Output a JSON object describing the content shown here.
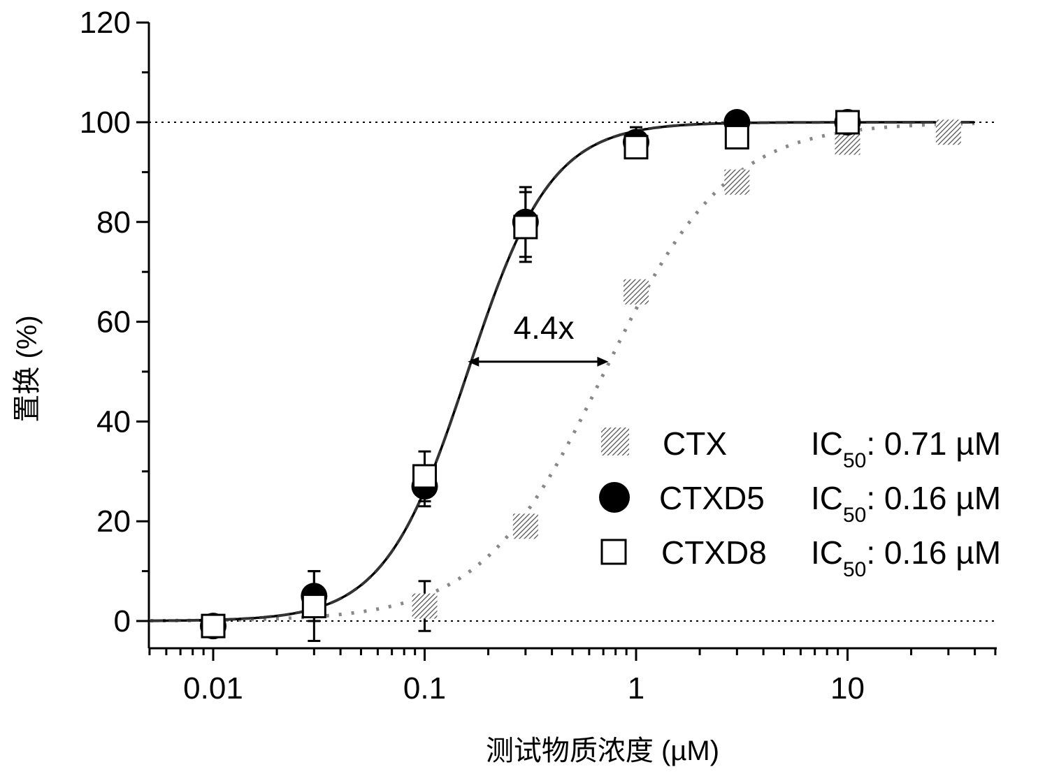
{
  "chart_data": {
    "type": "scatter",
    "xscale": "log",
    "xlim": [
      0.0055,
      48
    ],
    "ylim": [
      -5,
      120
    ],
    "xlabel": "测试物质浓度 (µM)",
    "ylabel": "置换 (%)",
    "xticks": [
      {
        "value": 0.01,
        "label": "0.01"
      },
      {
        "value": 0.1,
        "label": "0.1"
      },
      {
        "value": 1,
        "label": "1"
      },
      {
        "value": 10,
        "label": "10"
      }
    ],
    "yticks": [
      {
        "value": 0,
        "label": "0"
      },
      {
        "value": 20,
        "label": "20"
      },
      {
        "value": 40,
        "label": "40"
      },
      {
        "value": 60,
        "label": "60"
      },
      {
        "value": 80,
        "label": "80"
      },
      {
        "value": 100,
        "label": "100"
      },
      {
        "value": 120,
        "label": "120"
      }
    ],
    "reference_lines": [
      0,
      100
    ],
    "series": [
      {
        "name": "CTX",
        "marker": "hatched-square",
        "fit_line": "hatched",
        "ic50_label": "IC",
        "ic50_sub": "50",
        "ic50_value": ": 0.71 µM",
        "ic50": 0.71,
        "x": [
          0.1,
          0.3,
          1,
          3,
          10,
          30
        ],
        "y": [
          3,
          19,
          66,
          88,
          96,
          98
        ],
        "err": [
          5,
          0,
          0,
          0,
          0,
          0
        ]
      },
      {
        "name": "CTXD5",
        "marker": "filled-circle",
        "fit_line": "solid",
        "ic50_label": "IC",
        "ic50_sub": "50",
        "ic50_value": ": 0.16 µM",
        "ic50": 0.16,
        "x": [
          0.01,
          0.03,
          0.1,
          0.3,
          1,
          3,
          10
        ],
        "y": [
          -1,
          5,
          27,
          80,
          96,
          100,
          100
        ],
        "err": [
          0,
          5,
          4,
          7,
          3,
          0,
          0
        ]
      },
      {
        "name": "CTXD8",
        "marker": "open-square",
        "fit_line": "dashed",
        "ic50_label": "IC",
        "ic50_sub": "50",
        "ic50_value": ": 0.16 µM",
        "ic50": 0.16,
        "x": [
          0.01,
          0.03,
          0.1,
          0.3,
          1,
          3,
          10
        ],
        "y": [
          -1,
          3,
          29,
          79,
          95,
          97,
          100
        ],
        "err": [
          0,
          7,
          5,
          7,
          2,
          0,
          0
        ]
      }
    ],
    "annotation": {
      "text": "4.4x",
      "x_from": 0.16,
      "x_to": 0.74,
      "y": 52
    },
    "legend_position": "bottom-right",
    "grid": false
  }
}
